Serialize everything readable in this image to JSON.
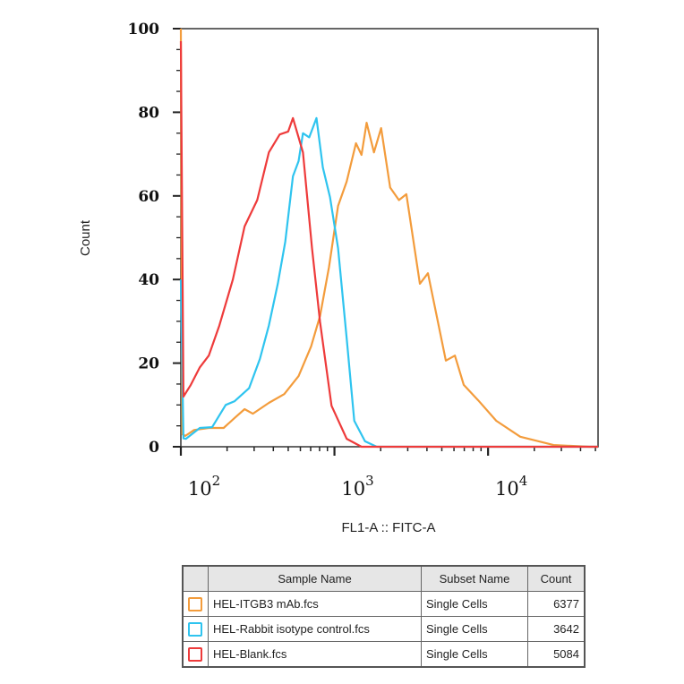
{
  "chart_data": {
    "type": "line",
    "title": "",
    "xlabel": "FL1-A :: FITC-A",
    "ylabel": "Count",
    "xscale": "log",
    "xlim": [
      100,
      52000
    ],
    "ylim": [
      0,
      100
    ],
    "x_ticks": [
      {
        "base": "10",
        "exp": "2",
        "value": 100
      },
      {
        "base": "10",
        "exp": "3",
        "value": 1000
      },
      {
        "base": "10",
        "exp": "4",
        "value": 10000
      }
    ],
    "y_ticks": [
      "0",
      "20",
      "40",
      "60",
      "80",
      "100"
    ],
    "grid": false,
    "series": [
      {
        "name": "HEL-ITGB3 mAb.fcs",
        "color": "#f39c3c",
        "x": [
          100,
          102,
          107,
          122,
          152,
          190,
          224,
          260,
          294,
          374,
          471,
          584,
          705,
          806,
          922,
          1055,
          1200,
          1380,
          1500,
          1620,
          1807,
          2013,
          2305,
          2630,
          2940,
          3600,
          4060,
          5310,
          6080,
          6950,
          8630,
          11300,
          16200,
          26700,
          45800,
          52000
        ],
        "y": [
          100,
          3,
          2.6,
          4,
          4.5,
          4.5,
          6.9,
          9,
          7.9,
          10.5,
          12.6,
          16.9,
          24,
          31.3,
          43,
          57.6,
          63.4,
          72.6,
          69.8,
          77.5,
          70.4,
          76.2,
          62,
          59,
          60.4,
          39,
          41.5,
          20.6,
          21.8,
          14.8,
          11.1,
          6.2,
          2.4,
          0.4,
          0,
          0
        ]
      },
      {
        "name": "HEL-Rabbit isotype control.fcs",
        "color": "#2fc4ef",
        "x": [
          100,
          104,
          108,
          133,
          160,
          196,
          224,
          278,
          327,
          374,
          428,
          478,
          537,
          584,
          624,
          685,
          764,
          840,
          935,
          1055,
          1200,
          1345,
          1580,
          1885,
          52000
        ],
        "y": [
          40,
          2,
          1.9,
          4.5,
          4.7,
          10,
          10.9,
          14,
          21,
          29,
          39,
          49,
          64.7,
          68.3,
          75,
          74,
          78.6,
          66.8,
          59.7,
          47.5,
          26,
          6.2,
          1.3,
          0,
          0
        ]
      },
      {
        "name": "HEL-Blank.fcs",
        "color": "#ee3b3b",
        "x": [
          100,
          104,
          116,
          133,
          152,
          178,
          218,
          260,
          314,
          374,
          440,
          500,
          537,
          624,
          714,
          806,
          957,
          1200,
          1500,
          52000
        ],
        "y": [
          97,
          12,
          14.8,
          19,
          21.8,
          29,
          40,
          52.7,
          59,
          70.4,
          74.7,
          75.4,
          78.6,
          70.4,
          47.5,
          29.8,
          9.8,
          1.9,
          0,
          0
        ]
      }
    ]
  },
  "legend_table": {
    "headers": [
      "",
      "Sample Name",
      "Subset Name",
      "Count"
    ],
    "rows": [
      {
        "sample": "HEL-ITGB3 mAb.fcs",
        "subset": "Single Cells",
        "count": "6377",
        "color": "#f39c3c"
      },
      {
        "sample": "HEL-Rabbit isotype control.fcs",
        "subset": "Single Cells",
        "count": "3642",
        "color": "#2fc4ef"
      },
      {
        "sample": "HEL-Blank.fcs",
        "subset": "Single Cells",
        "count": "5084",
        "color": "#ee3b3b"
      }
    ]
  }
}
